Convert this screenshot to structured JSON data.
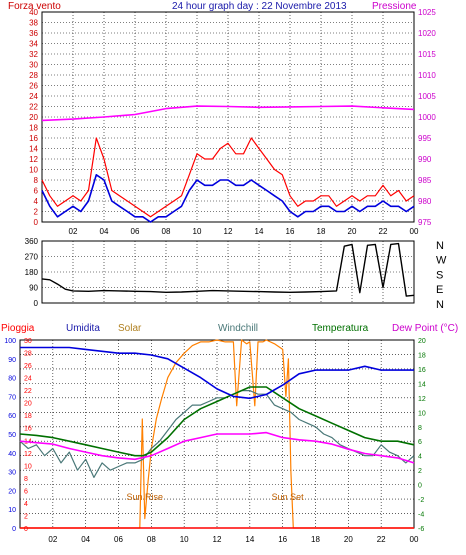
{
  "header": {
    "left_label": "Forza vento",
    "title": "24 hour graph day : 22 Novembre 2013",
    "right_label": "Pressione"
  },
  "mid_labels": {
    "pioggia": "Pioggia",
    "umidita": "Umidita",
    "solar": "Solar",
    "windchill": "Windchill",
    "temperatura": "Temperatura",
    "dewpoint": "Dew Point (°C)"
  },
  "annotations": {
    "sunrise": "Sun Rise",
    "sunset": "Sun Set"
  },
  "colors": {
    "wind_gust": "#ff0000",
    "wind_avg": "#0000dd",
    "pressure": "#ff00ff",
    "direction": "#000000",
    "rain": "#ff0000",
    "humidity": "#0000dd",
    "solar": "#ff8000",
    "windchill": "#4a7878",
    "temperature": "#007000",
    "dewpoint": "#ff00ff",
    "axis_left_top": "#cc0000",
    "axis_right_top": "#cc00cc",
    "axis_right_bottom": "#007700"
  },
  "chart_data": [
    {
      "type": "line",
      "x_ticks": [
        "02",
        "04",
        "06",
        "08",
        "10",
        "12",
        "14",
        "16",
        "18",
        "20",
        "22",
        "00"
      ],
      "y_left": {
        "ylim": [
          0,
          40
        ],
        "ticks": [
          0,
          2,
          4,
          6,
          8,
          10,
          12,
          14,
          16,
          18,
          20,
          22,
          24,
          26,
          28,
          30,
          32,
          34,
          36,
          38,
          40
        ]
      },
      "y_right": {
        "ylim": [
          975,
          1025
        ],
        "ticks": [
          975,
          980,
          985,
          990,
          995,
          1000,
          1005,
          1010,
          1015,
          1020,
          1025
        ]
      },
      "series": [
        {
          "name": "Forza vento",
          "axis": "left",
          "x": [
            0,
            0.5,
            1,
            1.5,
            2,
            2.5,
            3,
            3.5,
            4,
            4.5,
            5,
            5.5,
            6,
            6.5,
            7,
            7.5,
            8,
            8.5,
            9,
            9.5,
            10,
            10.5,
            11,
            11.5,
            12,
            12.5,
            13,
            13.5,
            14,
            14.5,
            15,
            15.5,
            16,
            16.5,
            17,
            17.5,
            18,
            18.5,
            19,
            19.5,
            20,
            20.5,
            21,
            21.5,
            22,
            22.5,
            23,
            23.5,
            24
          ],
          "values": [
            8,
            5,
            3,
            4,
            5,
            4,
            6,
            16,
            12,
            6,
            5,
            4,
            3,
            2,
            1,
            2,
            3,
            4,
            5,
            9,
            13,
            12,
            12,
            14,
            15,
            13,
            13,
            16,
            14,
            12,
            10,
            9,
            5,
            3,
            4,
            4,
            5,
            5,
            3,
            4,
            5,
            4,
            5,
            5,
            7,
            5,
            6,
            4,
            5
          ]
        },
        {
          "name": "Vento medio",
          "axis": "left",
          "x": [
            0,
            0.5,
            1,
            1.5,
            2,
            2.5,
            3,
            3.5,
            4,
            4.5,
            5,
            5.5,
            6,
            6.5,
            7,
            7.5,
            8,
            8.5,
            9,
            9.5,
            10,
            10.5,
            11,
            11.5,
            12,
            12.5,
            13,
            13.5,
            14,
            14.5,
            15,
            15.5,
            16,
            16.5,
            17,
            17.5,
            18,
            18.5,
            19,
            19.5,
            20,
            20.5,
            21,
            21.5,
            22,
            22.5,
            23,
            23.5,
            24
          ],
          "values": [
            6,
            3,
            1,
            2,
            3,
            2,
            4,
            9,
            8,
            4,
            3,
            2,
            1,
            1,
            0,
            1,
            1,
            2,
            3,
            6,
            8,
            7,
            7,
            8,
            8,
            7,
            7,
            8,
            7,
            6,
            5,
            4,
            2,
            1,
            2,
            2,
            3,
            3,
            2,
            2,
            3,
            2,
            3,
            3,
            4,
            3,
            3,
            2,
            3
          ]
        },
        {
          "name": "Pressione",
          "axis": "right",
          "x": [
            0,
            2,
            4,
            6,
            8,
            10,
            12,
            14,
            16,
            18,
            20,
            22,
            24
          ],
          "values": [
            999.2,
            999.5,
            1000,
            1000.6,
            1002,
            1002.6,
            1002.5,
            1002.3,
            1002.4,
            1002.5,
            1002.6,
            1002.2,
            1001.8
          ]
        }
      ]
    },
    {
      "type": "line",
      "x_ticks": [
        "02",
        "04",
        "06",
        "08",
        "10",
        "12",
        "14",
        "16",
        "18",
        "20",
        "22",
        "00"
      ],
      "y_left": {
        "ylim": [
          0,
          360
        ],
        "ticks": [
          0,
          90,
          180,
          270,
          360
        ]
      },
      "y_right_labels": [
        "N",
        "W",
        "S",
        "E",
        "N"
      ],
      "series": [
        {
          "name": "Direzione vento",
          "x": [
            0,
            0.5,
            1,
            1.5,
            2,
            3,
            4,
            5,
            6,
            7,
            8,
            9,
            10,
            11,
            12,
            13,
            14,
            15,
            16,
            17,
            18,
            19,
            19.5,
            20,
            20.5,
            21,
            21.5,
            22,
            22.5,
            23,
            23.5,
            24
          ],
          "values": [
            140,
            135,
            110,
            80,
            70,
            68,
            72,
            70,
            68,
            66,
            62,
            64,
            68,
            72,
            70,
            68,
            66,
            64,
            62,
            64,
            66,
            70,
            330,
            340,
            60,
            335,
            340,
            90,
            340,
            345,
            40,
            45
          ]
        }
      ]
    },
    {
      "type": "line",
      "x_ticks": [
        "02",
        "04",
        "06",
        "08",
        "10",
        "12",
        "14",
        "16",
        "18",
        "20",
        "22",
        "00"
      ],
      "y_left_rain": {
        "ylim": [
          0,
          30
        ],
        "ticks": [
          0,
          2,
          4,
          6,
          8,
          10,
          12,
          14,
          16,
          18,
          20,
          22,
          24,
          26,
          28,
          30
        ]
      },
      "y_left_humidity": {
        "ylim": [
          0,
          100
        ],
        "ticks": [
          0,
          10,
          20,
          30,
          40,
          50,
          60,
          70,
          80,
          90,
          100
        ]
      },
      "y_right": {
        "ylim": [
          -6,
          20
        ],
        "ticks": [
          -6,
          -4,
          -2,
          0,
          2,
          4,
          6,
          8,
          10,
          12,
          14,
          16,
          18,
          20
        ]
      },
      "series": [
        {
          "name": "Pioggia",
          "axis": "rain",
          "x": [
            0,
            24
          ],
          "values": [
            0,
            0
          ]
        },
        {
          "name": "Umidita",
          "axis": "humidity",
          "x": [
            0,
            1,
            2,
            3,
            4,
            5,
            6,
            7,
            8,
            9,
            10,
            11,
            12,
            13,
            14,
            15,
            16,
            17,
            18,
            19,
            20,
            21,
            22,
            23,
            24
          ],
          "values": [
            96,
            96,
            96,
            96,
            95,
            94,
            93,
            93,
            92,
            90,
            85,
            80,
            74,
            70,
            69,
            71,
            76,
            82,
            84,
            84,
            84,
            86,
            84,
            84,
            84
          ]
        },
        {
          "name": "Solar",
          "axis": "humidity",
          "x": [
            0,
            7.3,
            7.45,
            7.6,
            7.8,
            8,
            8.3,
            8.6,
            9,
            9.5,
            10,
            10.5,
            11,
            11.5,
            12,
            12.5,
            13,
            13.2,
            13.5,
            13.8,
            14,
            14.3,
            14.5,
            14.8,
            15,
            15.5,
            16,
            16.2,
            16.35,
            16.5,
            16.65,
            24
          ],
          "values": [
            0,
            0,
            58,
            5,
            25,
            42,
            58,
            68,
            80,
            88,
            93,
            97,
            99,
            99,
            100,
            99,
            99,
            65,
            100,
            98,
            99,
            65,
            99,
            99,
            100,
            98,
            95,
            70,
            90,
            30,
            0,
            0
          ]
        },
        {
          "name": "Windchill",
          "axis": "right",
          "x": [
            0,
            0.5,
            1,
            1.5,
            2,
            2.5,
            3,
            3.5,
            4,
            4.5,
            5,
            5.5,
            6,
            6.5,
            7,
            7.5,
            8,
            8.5,
            9,
            9.5,
            10,
            10.5,
            11,
            11.5,
            12,
            12.5,
            13,
            13.5,
            14,
            14.5,
            15,
            15.5,
            16,
            16.5,
            17,
            17.5,
            18,
            18.5,
            19,
            19.5,
            20,
            20.5,
            21,
            21.5,
            22,
            22.5,
            23,
            23.5,
            24
          ],
          "values": [
            6,
            5,
            5.5,
            4,
            5,
            3,
            4.5,
            2,
            3.5,
            1,
            3,
            2,
            2.5,
            3,
            3,
            3.5,
            5,
            6,
            7.5,
            9,
            10,
            11,
            11,
            11.5,
            12,
            12,
            12.5,
            13,
            13,
            12.5,
            12.5,
            11,
            10.5,
            10,
            9,
            8.5,
            8,
            7,
            6.5,
            5.5,
            5,
            4.5,
            4,
            4,
            5.5,
            4.5,
            4,
            3,
            4
          ]
        },
        {
          "name": "Temperatura",
          "axis": "right",
          "x": [
            0,
            1,
            2,
            3,
            4,
            5,
            6,
            7,
            7.5,
            8,
            9,
            10,
            11,
            12,
            13,
            14,
            15,
            16,
            17,
            18,
            19,
            20,
            21,
            22,
            23,
            24
          ],
          "values": [
            7,
            6.8,
            6.5,
            6,
            5.5,
            5,
            4.5,
            4,
            4,
            4.5,
            6.5,
            9,
            10.5,
            11.5,
            12.5,
            13.5,
            13.5,
            12,
            10.5,
            9.5,
            8.5,
            7.5,
            6.5,
            6,
            6,
            5.5
          ]
        },
        {
          "name": "Dew Point",
          "axis": "right",
          "x": [
            0,
            1,
            2,
            3,
            4,
            5,
            6,
            7,
            8,
            9,
            10,
            11,
            12,
            13,
            14,
            15,
            16,
            17,
            18,
            19,
            20,
            21,
            22,
            23,
            24
          ],
          "values": [
            6,
            5.8,
            5.6,
            5,
            4.5,
            4,
            3.7,
            3.5,
            4,
            5,
            6,
            6.5,
            7,
            7,
            7,
            7.2,
            6.5,
            6.2,
            6,
            5.6,
            4.9,
            4.3,
            4,
            3.7,
            3
          ]
        }
      ]
    }
  ]
}
